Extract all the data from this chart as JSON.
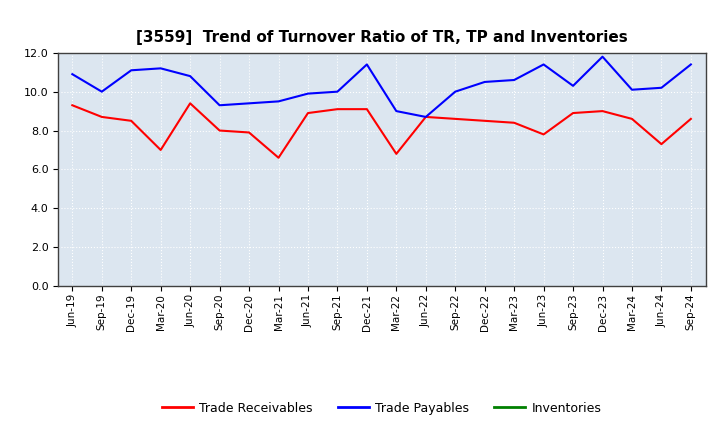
{
  "title": "[3559]  Trend of Turnover Ratio of TR, TP and Inventories",
  "x_labels": [
    "Jun-19",
    "Sep-19",
    "Dec-19",
    "Mar-20",
    "Jun-20",
    "Sep-20",
    "Dec-20",
    "Mar-21",
    "Jun-21",
    "Sep-21",
    "Dec-21",
    "Mar-22",
    "Jun-22",
    "Sep-22",
    "Dec-22",
    "Mar-23",
    "Jun-23",
    "Sep-23",
    "Dec-23",
    "Mar-24",
    "Jun-24",
    "Sep-24"
  ],
  "trade_receivables": [
    9.3,
    8.7,
    8.5,
    7.0,
    9.4,
    8.0,
    7.9,
    6.6,
    8.9,
    9.1,
    9.1,
    6.8,
    8.7,
    8.6,
    8.5,
    8.4,
    7.8,
    8.9,
    9.0,
    8.6,
    7.3,
    8.6
  ],
  "trade_payables": [
    10.9,
    10.0,
    11.1,
    11.2,
    10.8,
    9.3,
    9.4,
    9.5,
    9.9,
    10.0,
    11.4,
    9.0,
    8.7,
    10.0,
    10.5,
    10.6,
    11.4,
    10.3,
    11.8,
    10.1,
    10.2,
    11.4
  ],
  "inventories": [
    null,
    null,
    null,
    null,
    null,
    null,
    null,
    null,
    null,
    null,
    null,
    null,
    null,
    null,
    null,
    null,
    null,
    null,
    null,
    null,
    null,
    null
  ],
  "tr_color": "#FF0000",
  "tp_color": "#0000FF",
  "inv_color": "#008000",
  "ylim": [
    0.0,
    12.0
  ],
  "yticks": [
    0.0,
    2.0,
    4.0,
    6.0,
    8.0,
    10.0,
    12.0
  ],
  "background_color": "#FFFFFF",
  "plot_bg_color": "#DCE6F0",
  "grid_color": "#FFFFFF",
  "legend_labels": [
    "Trade Receivables",
    "Trade Payables",
    "Inventories"
  ]
}
